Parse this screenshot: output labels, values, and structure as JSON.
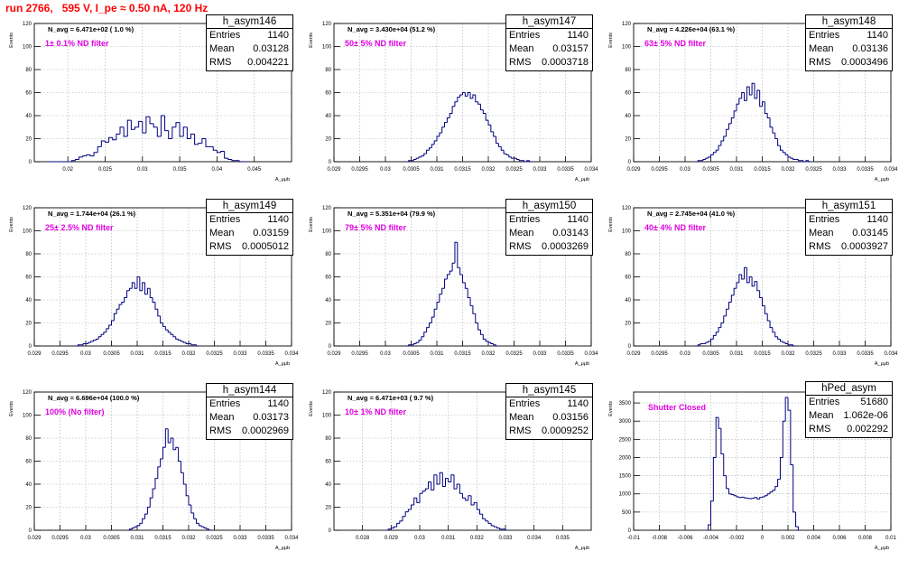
{
  "header": {
    "title": "run 2766,   595 V, I_pe ≈ 0.50 nA, 120 Hz"
  },
  "colors": {
    "hist": "#000080",
    "title": "#ff0000",
    "filter_text": "#e000e0",
    "grid": "#aaaaaa"
  },
  "chart_data": [
    {
      "type": "histogram",
      "name": "h_asym146",
      "stats": {
        "entries": "1140",
        "mean": "0.03128",
        "rms": "0.004221"
      },
      "n_avg": "N_avg = 6.471e+02 ( 1.0 %)",
      "filter": "1± 0.1% ND filter",
      "xlabel": "A_μμb",
      "ylabel": "Events",
      "xlim": [
        0.0155,
        0.05
      ],
      "ylim": [
        0,
        120
      ],
      "xticks": [
        "0.02",
        "0.025",
        "0.03",
        "0.035",
        "0.04",
        "0.045"
      ],
      "yticks": [
        "0",
        "20",
        "40",
        "60",
        "80",
        "100",
        "120"
      ],
      "grid": true,
      "binning": {
        "start": 0.0175,
        "width": 0.0005
      },
      "counts": [
        0,
        0,
        0,
        0,
        0,
        0,
        1,
        2,
        4,
        5,
        6,
        5,
        8,
        13,
        18,
        17,
        21,
        19,
        24,
        30,
        22,
        36,
        28,
        30,
        35,
        25,
        39,
        33,
        30,
        22,
        40,
        27,
        20,
        30,
        34,
        22,
        30,
        20,
        24,
        15,
        16,
        20,
        13,
        13,
        10,
        8,
        9,
        3,
        2,
        1,
        1,
        0,
        0
      ]
    },
    {
      "type": "histogram",
      "name": "h_asym147",
      "stats": {
        "entries": "1140",
        "mean": "0.03157",
        "rms": "0.0003718"
      },
      "n_avg": "N_avg = 3.430e+04 (51.2 %)",
      "filter": "50± 5% ND filter",
      "xlabel": "A_μμb",
      "ylabel": "Events",
      "xlim": [
        0.029,
        0.034
      ],
      "ylim": [
        0,
        120
      ],
      "xticks": [
        "0.029",
        "0.0295",
        "0.03",
        "0.0305",
        "0.031",
        "0.0315",
        "0.032",
        "0.0325",
        "0.033",
        "0.0335",
        "0.034"
      ],
      "yticks": [
        "0",
        "20",
        "40",
        "60",
        "80",
        "100",
        "120"
      ],
      "grid": true,
      "binning": {
        "start": 0.0304,
        "width": 5e-05
      },
      "counts": [
        0,
        1,
        1,
        2,
        3,
        4,
        5,
        7,
        10,
        12,
        15,
        18,
        22,
        25,
        30,
        34,
        38,
        42,
        48,
        52,
        56,
        58,
        60,
        57,
        60,
        55,
        58,
        52,
        50,
        45,
        42,
        36,
        32,
        26,
        22,
        16,
        13,
        10,
        7,
        6,
        4,
        3,
        3,
        2,
        1,
        1,
        0,
        1,
        0
      ]
    },
    {
      "type": "histogram",
      "name": "h_asym148",
      "stats": {
        "entries": "1140",
        "mean": "0.03136",
        "rms": "0.0003496"
      },
      "n_avg": "N_avg = 4.226e+04 (63.1 %)",
      "filter": "63± 5% ND filter",
      "xlabel": "A_μμb",
      "ylabel": "Events",
      "xlim": [
        0.029,
        0.034
      ],
      "ylim": [
        0,
        120
      ],
      "xticks": [
        "0.029",
        "0.0295",
        "0.03",
        "0.0305",
        "0.031",
        "0.0315",
        "0.032",
        "0.0325",
        "0.033",
        "0.0335",
        "0.034"
      ],
      "yticks": [
        "0",
        "20",
        "40",
        "60",
        "80",
        "100",
        "120"
      ],
      "grid": true,
      "binning": {
        "start": 0.0302,
        "width": 5e-05
      },
      "counts": [
        0,
        1,
        1,
        2,
        3,
        4,
        6,
        8,
        10,
        14,
        18,
        22,
        28,
        33,
        38,
        44,
        50,
        55,
        60,
        53,
        65,
        58,
        68,
        55,
        62,
        48,
        52,
        42,
        38,
        30,
        25,
        20,
        14,
        10,
        8,
        6,
        4,
        3,
        2,
        2,
        1,
        1,
        0,
        1,
        0
      ]
    },
    {
      "type": "histogram",
      "name": "h_asym149",
      "stats": {
        "entries": "1140",
        "mean": "0.03159",
        "rms": "0.0005012"
      },
      "n_avg": "N_avg = 1.744e+04 (26.1 %)",
      "filter": "25± 2.5% ND filter",
      "xlabel": "A_μμb",
      "ylabel": "Events",
      "xlim": [
        0.029,
        0.034
      ],
      "ylim": [
        0,
        120
      ],
      "xticks": [
        "0.029",
        "0.0295",
        "0.03",
        "0.0305",
        "0.031",
        "0.0315",
        "0.032",
        "0.0325",
        "0.033",
        "0.0335",
        "0.034"
      ],
      "yticks": [
        "0",
        "20",
        "40",
        "60",
        "80",
        "100",
        "120"
      ],
      "grid": true,
      "binning": {
        "start": 0.0298,
        "width": 5e-05
      },
      "counts": [
        0,
        1,
        1,
        2,
        2,
        3,
        4,
        5,
        6,
        8,
        10,
        12,
        15,
        18,
        22,
        28,
        32,
        36,
        38,
        42,
        48,
        50,
        55,
        50,
        60,
        48,
        55,
        45,
        50,
        42,
        38,
        32,
        26,
        20,
        17,
        14,
        12,
        10,
        8,
        6,
        5,
        4,
        3,
        2,
        2,
        1,
        1,
        0
      ]
    },
    {
      "type": "histogram",
      "name": "h_asym150",
      "stats": {
        "entries": "1140",
        "mean": "0.03143",
        "rms": "0.0003269"
      },
      "n_avg": "N_avg = 5.351e+04 (79.9 %)",
      "filter": "79± 5% ND filter",
      "xlabel": "A_μμb",
      "ylabel": "Events",
      "xlim": [
        0.029,
        0.034
      ],
      "ylim": [
        0,
        120
      ],
      "xticks": [
        "0.029",
        "0.0295",
        "0.03",
        "0.0305",
        "0.031",
        "0.0315",
        "0.032",
        "0.0325",
        "0.033",
        "0.0335",
        "0.034"
      ],
      "yticks": [
        "0",
        "20",
        "40",
        "60",
        "80",
        "100",
        "120"
      ],
      "grid": true,
      "binning": {
        "start": 0.0304,
        "width": 5e-05
      },
      "counts": [
        0,
        1,
        1,
        2,
        3,
        5,
        8,
        12,
        16,
        20,
        25,
        32,
        38,
        45,
        50,
        58,
        62,
        65,
        72,
        90,
        68,
        62,
        55,
        50,
        42,
        35,
        28,
        20,
        14,
        10,
        6,
        4,
        3,
        2,
        1,
        0
      ]
    },
    {
      "type": "histogram",
      "name": "h_asym151",
      "stats": {
        "entries": "1140",
        "mean": "0.03145",
        "rms": "0.0003927"
      },
      "n_avg": "N_avg = 2.745e+04 (41.0 %)",
      "filter": "40± 4% ND filter",
      "xlabel": "A_μμb",
      "ylabel": "Events",
      "xlim": [
        0.029,
        0.034
      ],
      "ylim": [
        0,
        120
      ],
      "xticks": [
        "0.029",
        "0.0295",
        "0.03",
        "0.0305",
        "0.031",
        "0.0315",
        "0.032",
        "0.0325",
        "0.033",
        "0.0335",
        "0.034"
      ],
      "yticks": [
        "0",
        "20",
        "40",
        "60",
        "80",
        "100",
        "120"
      ],
      "grid": true,
      "binning": {
        "start": 0.0302,
        "width": 5e-05
      },
      "counts": [
        0,
        1,
        2,
        2,
        3,
        4,
        6,
        9,
        12,
        16,
        20,
        26,
        32,
        38,
        44,
        50,
        55,
        62,
        58,
        68,
        55,
        60,
        52,
        56,
        48,
        42,
        35,
        28,
        22,
        16,
        12,
        8,
        6,
        4,
        3,
        2,
        1,
        1,
        0
      ]
    },
    {
      "type": "histogram",
      "name": "h_asym144",
      "stats": {
        "entries": "1140",
        "mean": "0.03173",
        "rms": "0.0002969"
      },
      "n_avg": "N_avg = 6.696e+04 (100.0 %)",
      "filter": "100% (No filter)",
      "xlabel": "A_μμb",
      "ylabel": "Events",
      "xlim": [
        0.029,
        0.034
      ],
      "ylim": [
        0,
        120
      ],
      "xticks": [
        "0.029",
        "0.0295",
        "0.03",
        "0.0305",
        "0.031",
        "0.0315",
        "0.032",
        "0.0325",
        "0.033",
        "0.0335",
        "0.034"
      ],
      "yticks": [
        "0",
        "20",
        "40",
        "60",
        "80",
        "100",
        "120"
      ],
      "grid": true,
      "binning": {
        "start": 0.0308,
        "width": 5e-05
      },
      "counts": [
        0,
        1,
        2,
        3,
        4,
        6,
        10,
        14,
        20,
        28,
        36,
        45,
        55,
        62,
        72,
        88,
        76,
        80,
        70,
        72,
        60,
        50,
        40,
        30,
        22,
        15,
        10,
        6,
        4,
        3,
        2,
        1,
        0
      ]
    },
    {
      "type": "histogram",
      "name": "h_asym145",
      "stats": {
        "entries": "1140",
        "mean": "0.03156",
        "rms": "0.0009252"
      },
      "n_avg": "N_avg = 6.471e+03 ( 9.7 %)",
      "filter": "10± 1% ND filter",
      "xlabel": "A_μμb",
      "ylabel": "Events",
      "xlim": [
        0.027,
        0.036
      ],
      "ylim": [
        0,
        120
      ],
      "xticks": [
        "0.028",
        "0.029",
        "0.03",
        "0.031",
        "0.032",
        "0.033",
        "0.034",
        "0.035"
      ],
      "yticks": [
        "0",
        "20",
        "40",
        "60",
        "80",
        "100",
        "120"
      ],
      "grid": true,
      "binning": {
        "start": 0.0288,
        "width": 0.0001
      },
      "counts": [
        0,
        1,
        2,
        3,
        6,
        8,
        12,
        16,
        18,
        22,
        28,
        24,
        32,
        34,
        36,
        42,
        35,
        48,
        40,
        50,
        38,
        45,
        42,
        48,
        36,
        40,
        32,
        28,
        26,
        30,
        22,
        24,
        18,
        14,
        10,
        8,
        6,
        4,
        3,
        2,
        1,
        1,
        0
      ]
    },
    {
      "type": "histogram",
      "name": "hPed_asym",
      "stats": {
        "entries": "51680",
        "mean": "1.062e-06",
        "rms": "0.002292"
      },
      "filter": "Shutter Closed",
      "xlabel": "A_μμb",
      "ylabel": "Events",
      "xlim": [
        -0.01,
        0.01
      ],
      "ylim": [
        0,
        3800
      ],
      "xticks": [
        "-0.01",
        "-0.008",
        "-0.006",
        "-0.004",
        "-0.002",
        "0",
        "0.002",
        "0.004",
        "0.006",
        "0.008",
        "0.01"
      ],
      "yticks": [
        "0",
        "500",
        "1000",
        "1500",
        "2000",
        "2500",
        "3000",
        "3500"
      ],
      "grid": true,
      "binning": {
        "start": -0.0044,
        "width": 0.0002
      },
      "counts": [
        0,
        150,
        800,
        2000,
        3100,
        2800,
        2100,
        1500,
        1150,
        1000,
        980,
        950,
        920,
        900,
        910,
        890,
        880,
        870,
        880,
        900,
        860,
        900,
        920,
        950,
        1000,
        1050,
        1100,
        1200,
        1400,
        2000,
        3000,
        3650,
        3300,
        1800,
        500,
        100,
        0
      ]
    }
  ]
}
